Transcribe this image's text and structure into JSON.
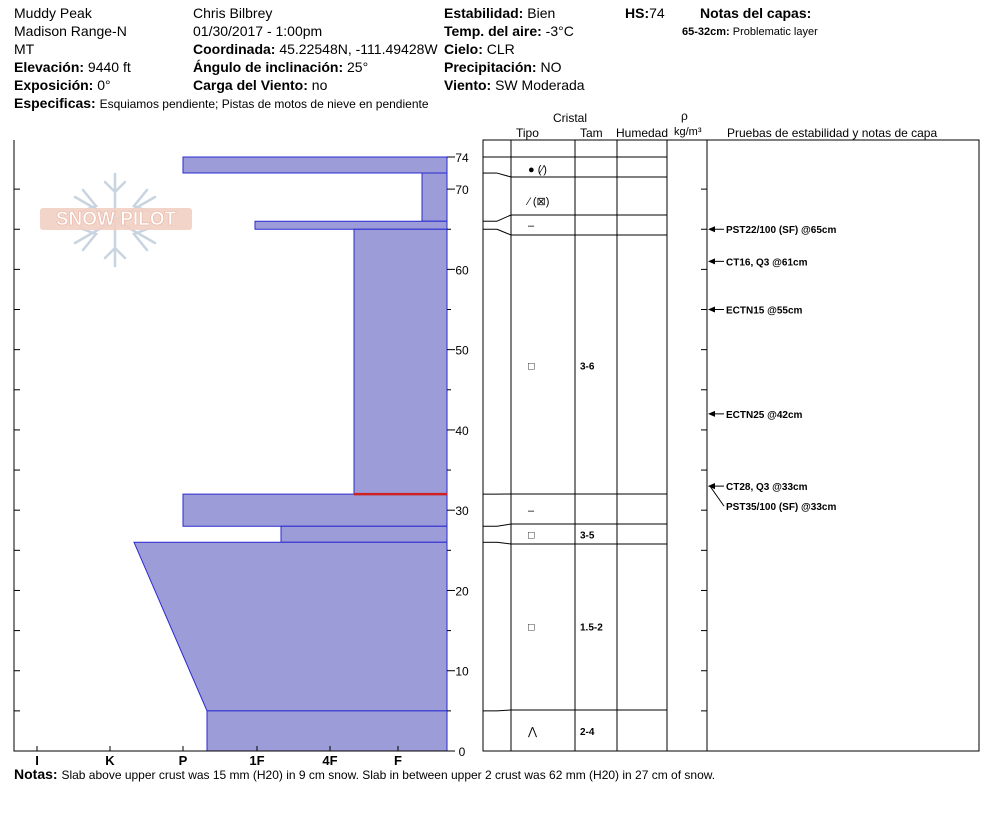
{
  "header": {
    "location": "Muddy Peak",
    "range": "Madison Range-N",
    "state": "MT",
    "elevation_label": "Elevación:",
    "elevation_value": "9440 ft",
    "aspect_label": "Exposición:",
    "aspect_value": "0°",
    "specifics_label": "Especificas:",
    "specifics_value": "Esquiamos pendiente; Pistas de motos de nieve en pendiente",
    "observer": "Chris Bilbrey",
    "datetime": "01/30/2017 - 1:00pm",
    "coord_label": "Coordinada:",
    "coord_value": "45.22548N, -111.49428W",
    "angle_label": "Ángulo de inclinación:",
    "angle_value": "25°",
    "wind_load_label": "Carga del Viento:",
    "wind_load_value": "no",
    "stability_label": "Estabilidad:",
    "stability_value": "Bien",
    "air_temp_label": "Temp. del aire:",
    "air_temp_value": "-3°C",
    "sky_label": "Cielo:",
    "sky_value": "CLR",
    "precip_label": "Precipitación:",
    "precip_value": "NO",
    "wind_label": "Viento:",
    "wind_value": "SW Moderada",
    "hs_label": "HS:",
    "hs_value": "74",
    "layer_notes_title": "Notas del capas:",
    "layer_note_range": "65-32cm:",
    "layer_note_text": "Problematic layer"
  },
  "logo_text": "SNOW PILOT",
  "columns": {
    "crystal": "Cristal",
    "tipo": "Tipo",
    "tam": "Tam",
    "humedad": "Humedad",
    "rho": "ρ",
    "density_unit": "kg/m³",
    "tests": "Pruebas de estabilidad y notas de capa"
  },
  "notes_label": "Notas:",
  "notes_text": "Slab above upper crust was 15 mm (H20) in 9 cm snow. Slab in between upper 2 crust was 62 mm (H20) in 27 cm of snow.",
  "colors": {
    "fill": "#9c9cd8",
    "edge": "#2a2ad0",
    "problem_line": "#cc2222"
  },
  "chart_data": {
    "type": "snow-profile",
    "hardness_scale": [
      "I",
      "K",
      "P",
      "1F",
      "4F",
      "F"
    ],
    "depth_ticks": [
      0,
      10,
      20,
      30,
      40,
      50,
      60,
      70,
      74
    ],
    "depth_range": [
      0,
      74
    ],
    "layers": [
      {
        "top": 74,
        "bottom": 72,
        "hardness_top": "P",
        "hardness_bottom": "P"
      },
      {
        "top": 72,
        "bottom": 66,
        "hardness_top": "F+",
        "hardness_bottom": "F+"
      },
      {
        "top": 66,
        "bottom": 65,
        "hardness_top": "1F-",
        "hardness_bottom": "1F-"
      },
      {
        "top": 65,
        "bottom": 32,
        "hardness_top": "4F+",
        "hardness_bottom": "4F+"
      },
      {
        "top": 32,
        "bottom": 28,
        "hardness_top": "P",
        "hardness_bottom": "P"
      },
      {
        "top": 28,
        "bottom": 26,
        "hardness_top": "1F+",
        "hardness_bottom": "1F+"
      },
      {
        "top": 26,
        "bottom": 5,
        "hardness_top": "K+",
        "hardness_bottom": "P+"
      },
      {
        "top": 5,
        "bottom": 0,
        "hardness_top": "P+",
        "hardness_bottom": "P+"
      }
    ],
    "problem_depth": 32,
    "crystal_rows": [
      {
        "depth": 72.5,
        "grain": "● (⁄)",
        "size": ""
      },
      {
        "depth": 68.5,
        "grain": "⁄ (⊠)",
        "size": ""
      },
      {
        "depth": 65.5,
        "grain": "–",
        "size": ""
      },
      {
        "depth": 48,
        "grain": "□",
        "size": "3-6"
      },
      {
        "depth": 30,
        "grain": "–",
        "size": ""
      },
      {
        "depth": 27,
        "grain": "□",
        "size": "3-5"
      },
      {
        "depth": 15.5,
        "grain": "□",
        "size": "1.5-2"
      },
      {
        "depth": 2.5,
        "grain": "⋀",
        "size": "2-4"
      }
    ],
    "stability_tests": [
      {
        "depth": 65,
        "label": "PST22/100 (SF) @65cm"
      },
      {
        "depth": 61,
        "label": "CT16, Q3 @61cm"
      },
      {
        "depth": 55,
        "label": "ECTN15 @55cm"
      },
      {
        "depth": 42,
        "label": "ECTN25 @42cm"
      },
      {
        "depth": 33,
        "label": "CT28, Q3 @33cm"
      },
      {
        "depth": 33,
        "label": "PST35/100 (SF) @33cm"
      }
    ]
  }
}
